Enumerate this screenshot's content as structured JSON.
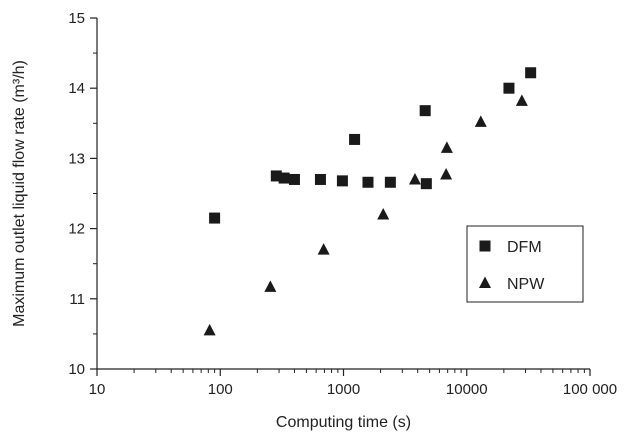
{
  "chart_data": {
    "type": "scatter",
    "xlabel": "Computing time (s)",
    "ylabel": "Maximum outlet liquid flow rate (m³/h)",
    "x_scale": "log",
    "xlim": [
      10,
      100000
    ],
    "ylim": [
      10,
      15
    ],
    "x_ticks": [
      10,
      100,
      1000,
      10000,
      100000
    ],
    "x_tick_labels": [
      "10",
      "100",
      "1000",
      "10000",
      "100 000"
    ],
    "y_ticks": [
      10,
      11,
      12,
      13,
      14,
      15
    ],
    "y_tick_labels": [
      "10",
      "11",
      "12",
      "13",
      "14",
      "15"
    ],
    "grid": false,
    "legend_position": "right-middle",
    "series": [
      {
        "name": "DFM",
        "marker": "square",
        "color": "#1a1a1a",
        "points": [
          [
            90,
            12.15
          ],
          [
            285,
            12.75
          ],
          [
            330,
            12.72
          ],
          [
            400,
            12.7
          ],
          [
            650,
            12.7
          ],
          [
            980,
            12.68
          ],
          [
            1230,
            13.27
          ],
          [
            1580,
            12.66
          ],
          [
            2400,
            12.66
          ],
          [
            4600,
            13.68
          ],
          [
            4700,
            12.64
          ],
          [
            22000,
            14.0
          ],
          [
            33000,
            14.22
          ]
        ]
      },
      {
        "name": "NPW",
        "marker": "triangle",
        "color": "#1a1a1a",
        "points": [
          [
            82,
            10.55
          ],
          [
            255,
            11.17
          ],
          [
            690,
            11.7
          ],
          [
            2100,
            12.2
          ],
          [
            3800,
            12.7
          ],
          [
            6800,
            12.77
          ],
          [
            6900,
            13.15
          ],
          [
            13000,
            13.52
          ],
          [
            28000,
            13.82
          ]
        ]
      }
    ]
  }
}
